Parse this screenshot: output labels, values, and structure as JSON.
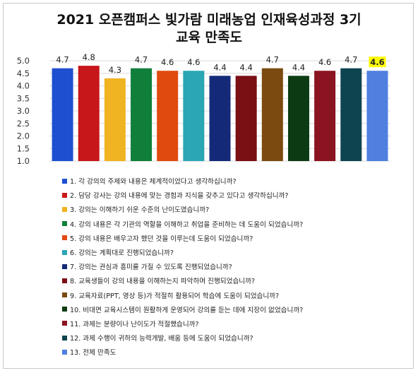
{
  "chart_data": {
    "type": "bar",
    "title_lines": [
      "2021 오픈캠퍼스 빛가람 미래농업 인재육성과정 3기",
      "교육 만족도"
    ],
    "ylim": [
      1.0,
      5.0
    ],
    "yticks": [
      "5.0",
      "4.5",
      "4.0",
      "3.5",
      "3.0",
      "2.5",
      "2.0",
      "1.5",
      "1.0"
    ],
    "grid": true,
    "legend_position": "bottom",
    "series": [
      {
        "name": "1. 각 강의의 주제와 내용은 체계적이었다고 생각하십니까?",
        "value": 4.7,
        "label": "4.7",
        "color": "#1f4fd1"
      },
      {
        "name": "2. 담당 강사는 강의 내용에 맞는 경험과 지식을 갖추고 있다고 생각하십니까?",
        "value": 4.8,
        "label": "4.8",
        "color": "#c8171b"
      },
      {
        "name": "3. 강의는 이해하기 쉬운 수준의 난이도였습니까?",
        "value": 4.3,
        "label": "4.3",
        "color": "#f0b321"
      },
      {
        "name": "4. 강의 내용은 각 기관의 역할을 이해하고 취업을 준비하는 데 도움이 되었습니까?",
        "value": 4.7,
        "label": "4.7",
        "color": "#0f7f3a"
      },
      {
        "name": "5. 강의 내용은 배우고자 했던 것을 이루는데 도움이 되었습니까?",
        "value": 4.6,
        "label": "4.6",
        "color": "#e04a0e"
      },
      {
        "name": "6. 강의는 계획대로 진행되었습니까?",
        "value": 4.6,
        "label": "4.6",
        "color": "#2aa6b4"
      },
      {
        "name": "7. 강의는 관심과 흥미를 가질 수 있도록 진행되었습니까?",
        "value": 4.4,
        "label": "4.4",
        "color": "#142a78"
      },
      {
        "name": "8. 교육생들이 강의 내용을 이해하는지 파악하며 진행되었습니까?",
        "value": 4.4,
        "label": "4.4",
        "color": "#7a0f14"
      },
      {
        "name": "9. 교육자료(PPT,  영상 등)가 적절히 활용되어 학습에 도움이 되었습니까?",
        "value": 4.7,
        "label": "4.7",
        "color": "#7a4a10"
      },
      {
        "name": "10. 비대면 교육시스템이 원활하게 운영되어 강의를 듣는 데에 지장이 없었습니까?",
        "value": 4.4,
        "label": "4.4",
        "color": "#0c3b13"
      },
      {
        "name": "11. 과제는 분량이나 난이도가 적절했습니까?",
        "value": 4.6,
        "label": "4.6",
        "color": "#8a1420"
      },
      {
        "name": "12. 과제 수행이 귀하의 능력개발, 배움 등에 도움이 되었습니까?",
        "value": 4.7,
        "label": "4.7",
        "color": "#0d4450"
      },
      {
        "name": "13. 전체 만족도",
        "value": 4.6,
        "label": "4.6",
        "color": "#4f7fdf",
        "highlight": "#ffff00"
      }
    ]
  }
}
